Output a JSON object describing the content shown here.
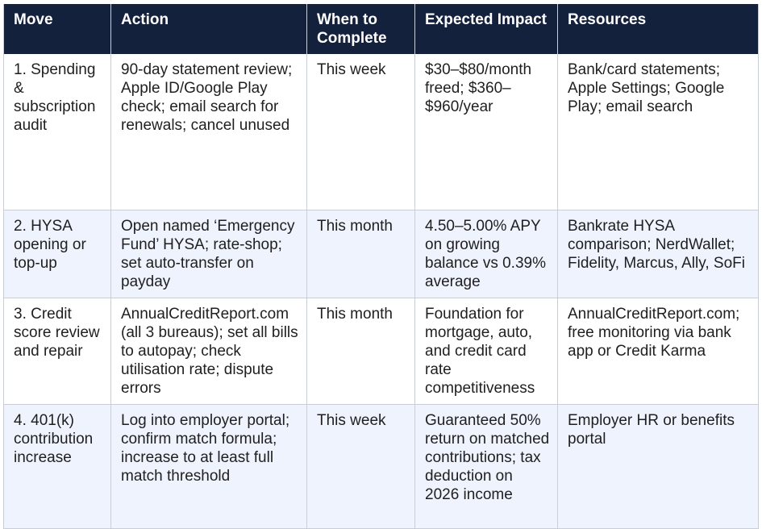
{
  "headers": [
    "Move",
    "Action",
    "When to Complete",
    "Expected Impact",
    "Resources"
  ],
  "rows": [
    {
      "move": "1. Spending & subscription audit",
      "action": "90-day statement review; Apple ID/Google Play check; email search for renewals; cancel unused",
      "when": "This week",
      "impact": "$30–$80/month freed; $360–$960/year",
      "resources": "Bank/card statements; Apple Settings; Google Play; email search"
    },
    {
      "move": "2. HYSA opening or top-up",
      "action": "Open named ‘Emergency Fund’ HYSA; rate-shop; set auto-transfer on payday",
      "when": "This month",
      "impact": "4.50–5.00% APY on growing balance vs 0.39% average",
      "resources": "Bankrate HYSA comparison; NerdWallet; Fidelity, Marcus, Ally, SoFi"
    },
    {
      "move": "3. Credit score review and repair",
      "action": "AnnualCreditReport.com (all 3 bureaus); set all bills to autopay; check utilisation rate; dispute errors",
      "when": "This month",
      "impact": "Foundation for mortgage, auto, and credit card rate competitiveness",
      "resources": "AnnualCreditReport.com; free monitoring via bank app or Credit Karma"
    },
    {
      "move": "4. 401(k) contribution increase",
      "action": "Log into employer portal; confirm match formula; increase to at least full match threshold",
      "when": "This week",
      "impact": "Guaranteed 50% return on matched contributions; tax deduction on 2026 income",
      "resources": "Employer HR or benefits portal"
    }
  ]
}
